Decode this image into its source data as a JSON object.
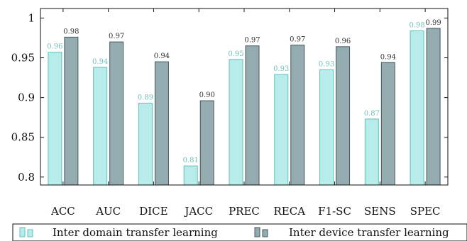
{
  "chart_data": {
    "type": "bar",
    "categories": [
      "ACC",
      "AUC",
      "DICE",
      "JACC",
      "PREC",
      "RECA",
      "F1-SC",
      "SENS",
      "SPEC"
    ],
    "series": [
      {
        "name": "Inter domain transfer learning",
        "values": [
          0.957,
          0.938,
          0.893,
          0.814,
          0.948,
          0.929,
          0.935,
          0.873,
          0.984
        ],
        "labels": [
          "0.96",
          "0.94",
          "0.89",
          "0.81",
          "0.95",
          "0.93",
          "0.93",
          "0.87",
          "0.98"
        ],
        "fill": "#b8ecea",
        "stroke": "#5fc2bd",
        "label_color": "#6fbfbb"
      },
      {
        "name": "Inter device transfer learning",
        "values": [
          0.976,
          0.97,
          0.945,
          0.896,
          0.965,
          0.966,
          0.964,
          0.944,
          0.987
        ],
        "labels": [
          "0.98",
          "0.97",
          "0.94",
          "0.90",
          "0.97",
          "0.97",
          "0.96",
          "0.94",
          "0.99"
        ],
        "fill": "#94abb0",
        "stroke": "#42585d",
        "label_color": "#333333"
      }
    ],
    "ylim": [
      0.79,
      1.012
    ],
    "yticks": [
      0.8,
      0.85,
      0.9,
      0.95,
      1
    ],
    "ytick_labels": [
      "0.8",
      "0.85",
      "0.9",
      "0.95",
      "1"
    ],
    "legend": "bottom",
    "grid": false
  }
}
